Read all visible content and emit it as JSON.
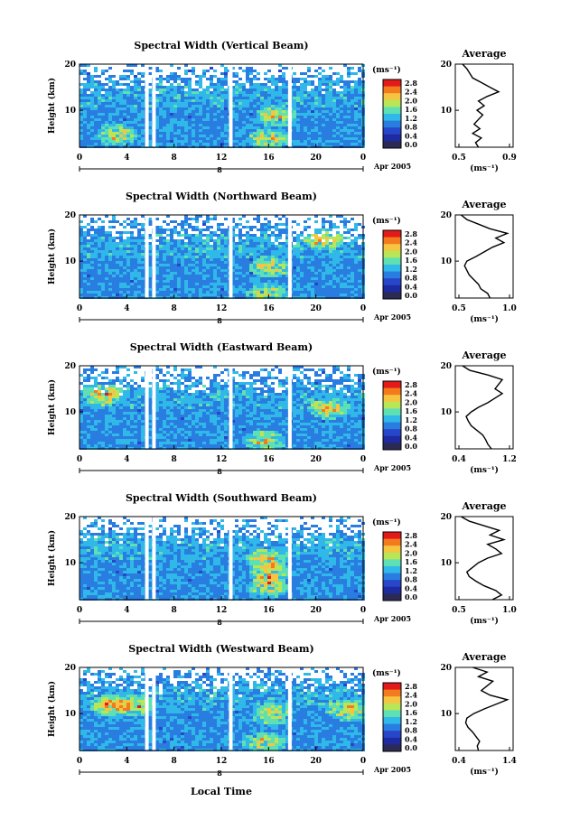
{
  "figure": {
    "x_axis_label": "Local Time",
    "date_label": "Apr 2005",
    "day_label": "8",
    "avg_title": "Average",
    "colorbar_unit": "(ms⁻¹)",
    "avg_xlabel": "(ms⁻¹)",
    "y_axis_label": "Height (km)"
  },
  "colorbar": {
    "ticks": [
      "2.8",
      "2.4",
      "2.0",
      "1.6",
      "1.2",
      "0.8",
      "0.4",
      "0.0"
    ],
    "colors": [
      "#e21a1a",
      "#f47a1e",
      "#f5c542",
      "#b8e656",
      "#5ee0b4",
      "#2fb8e8",
      "#2a7de0",
      "#2746c8",
      "#1e2aa0",
      "#2a2a55"
    ]
  },
  "chart_data": [
    {
      "type": "heatmap",
      "title": "Spectral Width (Vertical Beam)",
      "x_ticks": [
        "0",
        "4",
        "8",
        "12",
        "16",
        "20",
        "0"
      ],
      "y_ticks": [
        "20",
        "10"
      ],
      "xlim": [
        0,
        24
      ],
      "ylim": [
        2,
        20
      ],
      "gaps_hours": [
        5.7,
        6.3,
        12.8,
        17.8
      ],
      "hot_spots": [
        [
          15.8,
          4
        ],
        [
          3.0,
          5
        ],
        [
          16.5,
          9
        ]
      ],
      "average_profile": {
        "title": "Average",
        "xlim": [
          0.5,
          0.9
        ],
        "x_ticks": [
          "0.5",
          "0.9"
        ],
        "y_ticks": [
          "20",
          "10"
        ],
        "height_km": [
          2,
          3,
          4,
          5,
          6,
          7,
          8,
          9,
          10,
          11,
          12,
          13,
          14,
          15,
          16,
          17,
          18,
          19,
          20
        ],
        "values": [
          0.66,
          0.64,
          0.68,
          0.62,
          0.67,
          0.63,
          0.66,
          0.69,
          0.65,
          0.7,
          0.66,
          0.72,
          0.8,
          0.74,
          0.68,
          0.62,
          0.6,
          0.58,
          0.55
        ]
      }
    },
    {
      "type": "heatmap",
      "title": "Spectral Width (Northward Beam)",
      "x_ticks": [
        "0",
        "4",
        "8",
        "12",
        "16",
        "20",
        "0"
      ],
      "y_ticks": [
        "20",
        "10"
      ],
      "xlim": [
        0,
        24
      ],
      "ylim": [
        2,
        20
      ],
      "gaps_hours": [
        5.7,
        6.3,
        12.8,
        17.8
      ],
      "hot_spots": [
        [
          15.8,
          3
        ],
        [
          20.5,
          15
        ],
        [
          16.0,
          9
        ]
      ],
      "average_profile": {
        "title": "Average",
        "xlim": [
          0.5,
          1.0
        ],
        "x_ticks": [
          "0.5",
          "1.0"
        ],
        "y_ticks": [
          "20",
          "10"
        ],
        "height_km": [
          2,
          3,
          4,
          5,
          6,
          7,
          8,
          9,
          10,
          11,
          12,
          13,
          14,
          15,
          16,
          17,
          18,
          19,
          20
        ],
        "values": [
          0.8,
          0.78,
          0.72,
          0.7,
          0.66,
          0.62,
          0.6,
          0.58,
          0.6,
          0.68,
          0.75,
          0.82,
          0.92,
          0.85,
          0.95,
          0.8,
          0.7,
          0.6,
          0.55
        ]
      }
    },
    {
      "type": "heatmap",
      "title": "Spectral Width (Eastward Beam)",
      "x_ticks": [
        "0",
        "4",
        "8",
        "12",
        "16",
        "20",
        "0"
      ],
      "y_ticks": [
        "20",
        "10"
      ],
      "xlim": [
        0,
        24
      ],
      "ylim": [
        2,
        20
      ],
      "gaps_hours": [
        5.7,
        6.3,
        12.8,
        17.8
      ],
      "hot_spots": [
        [
          2.0,
          14
        ],
        [
          21.0,
          11
        ],
        [
          15.5,
          4
        ]
      ],
      "average_profile": {
        "title": "Average",
        "xlim": [
          0.4,
          1.2
        ],
        "x_ticks": [
          "0.4",
          "1.2"
        ],
        "y_ticks": [
          "20",
          "10"
        ],
        "height_km": [
          2,
          3,
          4,
          5,
          6,
          7,
          8,
          9,
          10,
          11,
          12,
          13,
          14,
          15,
          16,
          17,
          18,
          19,
          20
        ],
        "values": [
          0.9,
          0.85,
          0.82,
          0.78,
          0.7,
          0.62,
          0.58,
          0.55,
          0.62,
          0.72,
          0.85,
          0.95,
          1.05,
          0.95,
          1.0,
          1.05,
          0.85,
          0.6,
          0.5
        ]
      }
    },
    {
      "type": "heatmap",
      "title": "Spectral Width (Southward Beam)",
      "x_ticks": [
        "0",
        "4",
        "8",
        "12",
        "16",
        "20",
        "0"
      ],
      "y_ticks": [
        "20",
        "10"
      ],
      "xlim": [
        0,
        24
      ],
      "ylim": [
        2,
        20
      ],
      "gaps_hours": [
        5.7,
        6.3,
        12.8,
        17.8
      ],
      "hot_spots": [
        [
          15.8,
          5
        ],
        [
          15.6,
          11
        ],
        [
          16.0,
          8
        ]
      ],
      "average_profile": {
        "title": "Average",
        "xlim": [
          0.5,
          1.0
        ],
        "x_ticks": [
          "0.5",
          "1.0"
        ],
        "y_ticks": [
          "20",
          "10"
        ],
        "height_km": [
          2,
          3,
          4,
          5,
          6,
          7,
          8,
          9,
          10,
          11,
          12,
          13,
          14,
          15,
          16,
          17,
          18,
          19,
          20
        ],
        "values": [
          0.82,
          0.9,
          0.85,
          0.75,
          0.68,
          0.62,
          0.6,
          0.65,
          0.7,
          0.78,
          0.9,
          0.85,
          0.78,
          0.92,
          0.8,
          0.88,
          0.75,
          0.62,
          0.55
        ]
      }
    },
    {
      "type": "heatmap",
      "title": "Spectral Width (Westward Beam)",
      "x_ticks": [
        "0",
        "4",
        "8",
        "12",
        "16",
        "20",
        "0"
      ],
      "y_ticks": [
        "20",
        "10"
      ],
      "xlim": [
        0,
        24
      ],
      "ylim": [
        2,
        20
      ],
      "gaps_hours": [
        5.7,
        6.3,
        12.8,
        17.8
      ],
      "hot_spots": [
        [
          2.5,
          12
        ],
        [
          4.5,
          12
        ],
        [
          15.5,
          4
        ],
        [
          16.2,
          10
        ],
        [
          22.5,
          11
        ]
      ],
      "average_profile": {
        "title": "Average",
        "xlim": [
          0.4,
          1.4
        ],
        "x_ticks": [
          "0.4",
          "1.4"
        ],
        "y_ticks": [
          "20",
          "10"
        ],
        "height_km": [
          2,
          3,
          4,
          5,
          6,
          7,
          8,
          9,
          10,
          11,
          12,
          13,
          14,
          15,
          16,
          17,
          18,
          19,
          20
        ],
        "values": [
          0.8,
          0.78,
          0.82,
          0.76,
          0.7,
          0.62,
          0.58,
          0.6,
          0.72,
          0.9,
          1.1,
          1.3,
          1.0,
          0.85,
          0.95,
          1.05,
          0.8,
          0.95,
          0.7
        ]
      }
    }
  ]
}
